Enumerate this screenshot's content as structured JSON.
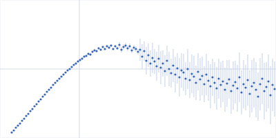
{
  "chart_data": {
    "type": "scatter",
    "marker": "circle",
    "color": "#3a68b8",
    "grid": true,
    "tick_labels": false,
    "xlim": [
      0,
      400
    ],
    "ylim": [
      0,
      200
    ],
    "xticks": [
      115
    ],
    "yticks": [
      100
    ],
    "x": [
      17,
      20,
      23,
      26,
      29,
      32,
      35,
      38,
      41,
      44,
      47,
      50,
      53,
      56,
      59,
      62,
      65,
      68,
      71,
      74,
      77,
      80,
      83,
      86,
      89,
      92,
      95,
      98,
      101,
      104,
      107,
      110,
      113,
      116,
      119,
      122,
      125,
      128,
      131,
      134,
      137,
      140,
      143,
      146,
      149,
      152,
      155,
      158,
      161,
      164,
      167,
      170,
      173,
      176,
      179,
      182,
      185,
      188,
      191,
      194,
      197,
      200,
      203,
      206,
      209,
      212,
      215,
      218,
      221,
      224,
      227,
      230,
      233,
      236,
      239,
      242,
      245,
      248,
      251,
      254,
      257,
      260,
      263,
      266,
      269,
      272,
      275,
      278,
      281,
      284,
      287,
      290,
      293,
      296,
      299,
      302,
      305,
      308,
      311,
      314,
      317,
      320,
      323,
      326,
      329,
      332,
      335,
      338,
      341,
      344,
      347,
      350,
      353,
      356,
      359,
      362,
      365,
      368,
      371,
      374,
      377,
      380,
      383,
      386,
      389,
      392,
      395,
      398
    ],
    "values": [
      8,
      11,
      15,
      18,
      21,
      25,
      28,
      32,
      35,
      39,
      42,
      46,
      49,
      53,
      56,
      60,
      63,
      67,
      70,
      73,
      77,
      80,
      83,
      86,
      89,
      92,
      95,
      98,
      100,
      103,
      106,
      108,
      111,
      113,
      115,
      118,
      119,
      122,
      121,
      125,
      127,
      126,
      130,
      128,
      132,
      129,
      133,
      131,
      134,
      129,
      133,
      130,
      135,
      128,
      132,
      134,
      130,
      133,
      127,
      131,
      129,
      125,
      128,
      118,
      126,
      112,
      120,
      108,
      116,
      111,
      104,
      115,
      102,
      108,
      97,
      112,
      100,
      94,
      105,
      92,
      101,
      88,
      98,
      95,
      86,
      100,
      84,
      93,
      89,
      80,
      96,
      85,
      90,
      78,
      92,
      83,
      75,
      88,
      80,
      72,
      86,
      77,
      82,
      70,
      79,
      85,
      68,
      76,
      81,
      72,
      88,
      66,
      78,
      73,
      84,
      64,
      75,
      80,
      70,
      60,
      78,
      86,
      68,
      74,
      82,
      62,
      77,
      71
    ],
    "errors": [
      1,
      1,
      1,
      1,
      1,
      1,
      1,
      1,
      1,
      1,
      1,
      1,
      1,
      1,
      1,
      1,
      1,
      1,
      1,
      1,
      1,
      1,
      1,
      1,
      1,
      1,
      1,
      1,
      1,
      1,
      1,
      2,
      2,
      2,
      2,
      2,
      2,
      2,
      2,
      2,
      2,
      2,
      2,
      2,
      2,
      2,
      2,
      2,
      2,
      2,
      2,
      2,
      4,
      4,
      4,
      4,
      4,
      4,
      4,
      4,
      4,
      4,
      16,
      18,
      14,
      20,
      17,
      19,
      22,
      18,
      21,
      20,
      24,
      19,
      23,
      22,
      25,
      21,
      24,
      26,
      22,
      28,
      25,
      27,
      24,
      29,
      26,
      28,
      30,
      25,
      27,
      31,
      28,
      26,
      30,
      29,
      32,
      27,
      30,
      31,
      29,
      33,
      30,
      32,
      34,
      28,
      33,
      35,
      31,
      34,
      36,
      32,
      35,
      33,
      37,
      34,
      38,
      36,
      40,
      35,
      38,
      37,
      41,
      36,
      39,
      42,
      38,
      40
    ]
  }
}
